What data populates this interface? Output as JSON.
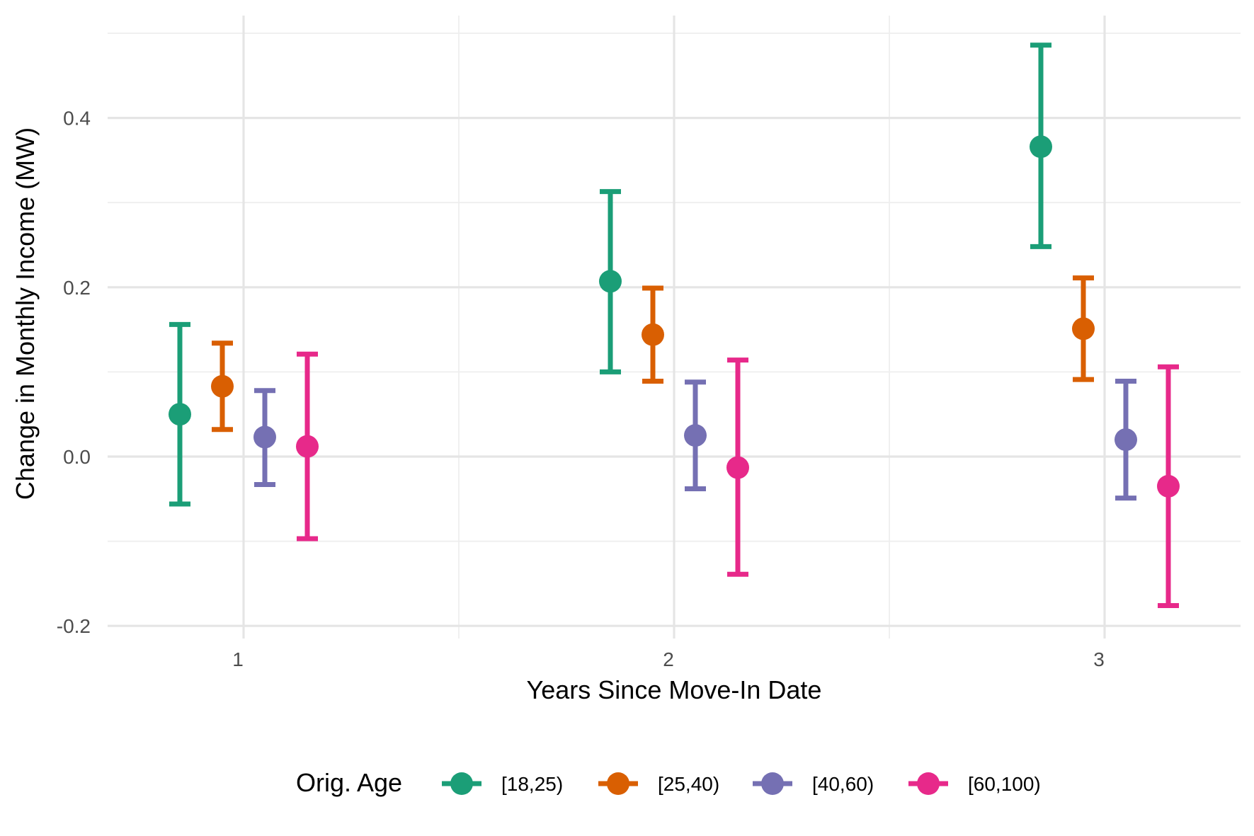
{
  "chart_data": {
    "type": "scatter",
    "subtype": "point-with-errorbars",
    "title": "",
    "xlabel": "Years Since Move-In Date",
    "ylabel": "Change in Monthly Income (MW)",
    "x_categories": [
      "1",
      "2",
      "3"
    ],
    "y_ticks": [
      -0.2,
      0.0,
      0.2,
      0.4
    ],
    "y_tick_labels": [
      "-0.2",
      "0.0",
      "0.2",
      "0.4"
    ],
    "ylim": [
      -0.215,
      0.505
    ],
    "grid": true,
    "legend": {
      "title": "Orig. Age",
      "position": "bottom"
    },
    "series": [
      {
        "name": "[18,25)",
        "color": "#1b9e77",
        "points": [
          {
            "x": "1",
            "y": 0.05,
            "lower": -0.056,
            "upper": 0.156
          },
          {
            "x": "2",
            "y": 0.207,
            "lower": 0.1,
            "upper": 0.313
          },
          {
            "x": "3",
            "y": 0.366,
            "lower": 0.248,
            "upper": 0.486
          }
        ]
      },
      {
        "name": "[25,40)",
        "color": "#d95f02",
        "points": [
          {
            "x": "1",
            "y": 0.083,
            "lower": 0.032,
            "upper": 0.134
          },
          {
            "x": "2",
            "y": 0.144,
            "lower": 0.089,
            "upper": 0.199
          },
          {
            "x": "3",
            "y": 0.151,
            "lower": 0.091,
            "upper": 0.211
          }
        ]
      },
      {
        "name": "[40,60)",
        "color": "#7570b3",
        "points": [
          {
            "x": "1",
            "y": 0.023,
            "lower": -0.033,
            "upper": 0.078
          },
          {
            "x": "2",
            "y": 0.025,
            "lower": -0.038,
            "upper": 0.088
          },
          {
            "x": "3",
            "y": 0.02,
            "lower": -0.049,
            "upper": 0.089
          }
        ]
      },
      {
        "name": "[60,100)",
        "color": "#e7298a",
        "points": [
          {
            "x": "1",
            "y": 0.012,
            "lower": -0.097,
            "upper": 0.121
          },
          {
            "x": "2",
            "y": -0.013,
            "lower": -0.139,
            "upper": 0.114
          },
          {
            "x": "3",
            "y": -0.035,
            "lower": -0.176,
            "upper": 0.106
          }
        ]
      }
    ]
  }
}
